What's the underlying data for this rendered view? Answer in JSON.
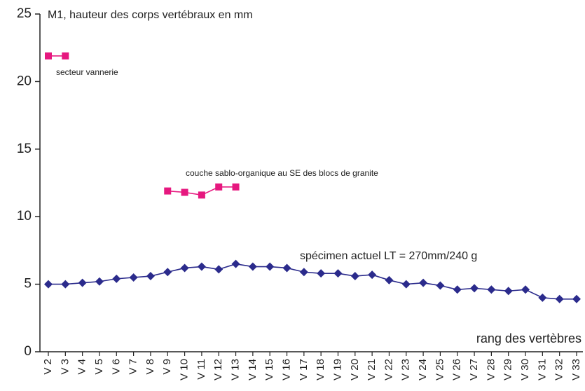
{
  "chart_data": {
    "type": "line",
    "title": "M1, hauteur des corps vertébraux en mm",
    "x_label": "rang des vertèbres",
    "categories": [
      "V 2",
      "V 3",
      "V 4",
      "V 5",
      "V 6",
      "V 7",
      "V 8",
      "V 9",
      "V 10",
      "V 11",
      "V 12",
      "V 13",
      "V 14",
      "V 15",
      "V 16",
      "V 17",
      "V 18",
      "V 19",
      "V 20",
      "V 21",
      "V 22",
      "V 23",
      "V 24",
      "V 25",
      "V 26",
      "V 27",
      "V 28",
      "V 29",
      "V 30",
      "V 31",
      "V 32",
      "V 33"
    ],
    "series": [
      {
        "name": "secteur vannerie",
        "color": "#e6187f",
        "marker": "square",
        "values": [
          21.9,
          21.9,
          null,
          null,
          null,
          null,
          null,
          null,
          null,
          null,
          null,
          null,
          null,
          null,
          null,
          null,
          null,
          null,
          null,
          null,
          null,
          null,
          null,
          null,
          null,
          null,
          null,
          null,
          null,
          null,
          null,
          null
        ]
      },
      {
        "name": "couche sablo-organique au SE des blocs de granite",
        "color": "#e6187f",
        "marker": "square",
        "values": [
          null,
          null,
          null,
          null,
          null,
          null,
          null,
          11.9,
          11.8,
          11.6,
          12.2,
          12.2,
          null,
          null,
          null,
          null,
          null,
          null,
          null,
          null,
          null,
          null,
          null,
          null,
          null,
          null,
          null,
          null,
          null,
          null,
          null,
          null
        ]
      },
      {
        "name": "spécimen actuel LT = 270mm/240 g",
        "color": "#2b2b8c",
        "marker": "diamond",
        "values": [
          5.0,
          5.0,
          5.1,
          5.2,
          5.4,
          5.5,
          5.6,
          5.9,
          6.2,
          6.3,
          6.1,
          6.5,
          6.3,
          6.3,
          6.2,
          5.9,
          5.8,
          5.8,
          5.6,
          5.7,
          5.3,
          5.0,
          5.1,
          4.9,
          4.6,
          4.7,
          4.6,
          4.5,
          4.6,
          4.0,
          3.9,
          3.9
        ]
      }
    ],
    "ylim": [
      0,
      25
    ],
    "yticks": [
      0,
      5,
      10,
      15,
      20,
      25
    ],
    "grid": false
  }
}
